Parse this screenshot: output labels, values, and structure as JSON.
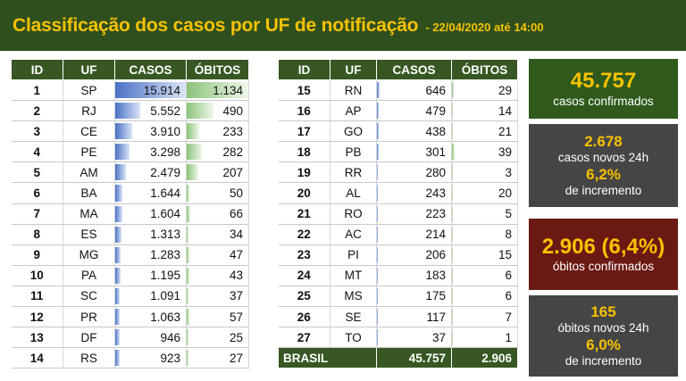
{
  "header": {
    "title": "Classificação dos casos por UF de notificação",
    "subtitle": "- 22/04/2020 até 14:00"
  },
  "columns": [
    "ID",
    "UF",
    "CASOS",
    "ÓBITOS"
  ],
  "rows_left": [
    {
      "id": "1",
      "uf": "SP",
      "casos": "15.914",
      "obitos": "1.134",
      "casos_val": 15914,
      "obitos_val": 1134
    },
    {
      "id": "2",
      "uf": "RJ",
      "casos": "5.552",
      "obitos": "490",
      "casos_val": 5552,
      "obitos_val": 490
    },
    {
      "id": "3",
      "uf": "CE",
      "casos": "3.910",
      "obitos": "233",
      "casos_val": 3910,
      "obitos_val": 233
    },
    {
      "id": "4",
      "uf": "PE",
      "casos": "3.298",
      "obitos": "282",
      "casos_val": 3298,
      "obitos_val": 282
    },
    {
      "id": "5",
      "uf": "AM",
      "casos": "2.479",
      "obitos": "207",
      "casos_val": 2479,
      "obitos_val": 207
    },
    {
      "id": "6",
      "uf": "BA",
      "casos": "1.644",
      "obitos": "50",
      "casos_val": 1644,
      "obitos_val": 50
    },
    {
      "id": "7",
      "uf": "MA",
      "casos": "1.604",
      "obitos": "66",
      "casos_val": 1604,
      "obitos_val": 66
    },
    {
      "id": "8",
      "uf": "ES",
      "casos": "1.313",
      "obitos": "34",
      "casos_val": 1313,
      "obitos_val": 34
    },
    {
      "id": "9",
      "uf": "MG",
      "casos": "1.283",
      "obitos": "47",
      "casos_val": 1283,
      "obitos_val": 47
    },
    {
      "id": "10",
      "uf": "PA",
      "casos": "1.195",
      "obitos": "43",
      "casos_val": 1195,
      "obitos_val": 43
    },
    {
      "id": "11",
      "uf": "SC",
      "casos": "1.091",
      "obitos": "37",
      "casos_val": 1091,
      "obitos_val": 37
    },
    {
      "id": "12",
      "uf": "PR",
      "casos": "1.063",
      "obitos": "57",
      "casos_val": 1063,
      "obitos_val": 57
    },
    {
      "id": "13",
      "uf": "DF",
      "casos": "946",
      "obitos": "25",
      "casos_val": 946,
      "obitos_val": 25
    },
    {
      "id": "14",
      "uf": "RS",
      "casos": "923",
      "obitos": "27",
      "casos_val": 923,
      "obitos_val": 27
    }
  ],
  "rows_right": [
    {
      "id": "15",
      "uf": "RN",
      "casos": "646",
      "obitos": "29",
      "casos_val": 646,
      "obitos_val": 29
    },
    {
      "id": "16",
      "uf": "AP",
      "casos": "479",
      "obitos": "14",
      "casos_val": 479,
      "obitos_val": 14
    },
    {
      "id": "17",
      "uf": "GO",
      "casos": "438",
      "obitos": "21",
      "casos_val": 438,
      "obitos_val": 21
    },
    {
      "id": "18",
      "uf": "PB",
      "casos": "301",
      "obitos": "39",
      "casos_val": 301,
      "obitos_val": 39
    },
    {
      "id": "19",
      "uf": "RR",
      "casos": "280",
      "obitos": "3",
      "casos_val": 280,
      "obitos_val": 3
    },
    {
      "id": "20",
      "uf": "AL",
      "casos": "243",
      "obitos": "20",
      "casos_val": 243,
      "obitos_val": 20
    },
    {
      "id": "21",
      "uf": "RO",
      "casos": "223",
      "obitos": "5",
      "casos_val": 223,
      "obitos_val": 5
    },
    {
      "id": "22",
      "uf": "AC",
      "casos": "214",
      "obitos": "8",
      "casos_val": 214,
      "obitos_val": 8
    },
    {
      "id": "23",
      "uf": "PI",
      "casos": "206",
      "obitos": "15",
      "casos_val": 206,
      "obitos_val": 15
    },
    {
      "id": "24",
      "uf": "MT",
      "casos": "183",
      "obitos": "6",
      "casos_val": 183,
      "obitos_val": 6
    },
    {
      "id": "25",
      "uf": "MS",
      "casos": "175",
      "obitos": "6",
      "casos_val": 175,
      "obitos_val": 6
    },
    {
      "id": "26",
      "uf": "SE",
      "casos": "117",
      "obitos": "7",
      "casos_val": 117,
      "obitos_val": 7
    },
    {
      "id": "27",
      "uf": "TO",
      "casos": "37",
      "obitos": "1",
      "casos_val": 37,
      "obitos_val": 1
    }
  ],
  "total": {
    "label": "BRASIL",
    "casos": "45.757",
    "obitos": "2.906"
  },
  "bar_max": {
    "casos": 15914,
    "obitos": 1134
  },
  "summary": {
    "confirmed_value": "45.757",
    "confirmed_label": "casos confirmados",
    "new_cases_value": "2.678",
    "new_cases_label": "casos novos 24h",
    "new_cases_pct": "6,2%",
    "new_cases_pct_label": "de incremento",
    "deaths_value": "2.906 (6,4%)",
    "deaths_label": "óbitos confirmados",
    "new_deaths_value": "165",
    "new_deaths_label": "óbitos novos 24h",
    "new_deaths_pct": "6,0%",
    "new_deaths_pct_label": "de incremento"
  },
  "colors": {
    "header_bg": "#2f4f1f",
    "accent": "#f7c200",
    "table_header_bg": "#385723",
    "box_green": "#2f5a1c",
    "box_gray": "#454545",
    "box_red": "#6a1a12",
    "bar_cases": "#4a72c4",
    "bar_deaths": "#8cc37a"
  }
}
